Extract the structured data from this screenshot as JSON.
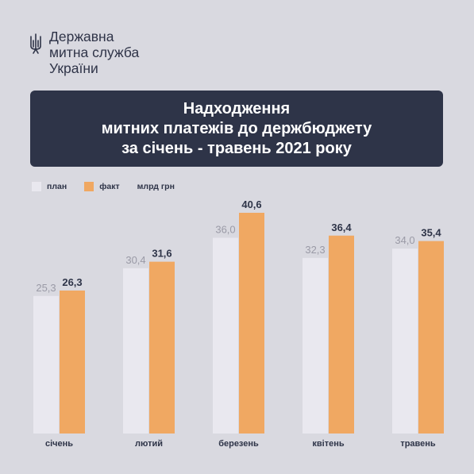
{
  "header": {
    "org_lines": [
      "Державна",
      "митна служба",
      "України"
    ],
    "emblem_icon": "trident-icon"
  },
  "title_lines": [
    "Надходження",
    "митних платежів до держбюджету",
    "за січень - травень 2021 року"
  ],
  "legend": {
    "plan_label": "план",
    "fact_label": "факт",
    "unit_label": "млрд грн"
  },
  "colors": {
    "background": "#d9d9e0",
    "plan": "#e9e8ef",
    "fact": "#f0a862",
    "title_bg": "#2e3448",
    "plan_label": "#9a9aa6",
    "fact_label": "#2e3448"
  },
  "chart_data": {
    "type": "bar",
    "categories": [
      "січень",
      "лютий",
      "березень",
      "квітень",
      "травень"
    ],
    "series": [
      {
        "name": "план",
        "values": [
          25.3,
          30.4,
          36.0,
          32.3,
          34.0
        ],
        "labels": [
          "25,3",
          "30,4",
          "36,0",
          "32,3",
          "34,0"
        ]
      },
      {
        "name": "факт",
        "values": [
          26.3,
          31.6,
          40.6,
          36.4,
          35.4
        ],
        "labels": [
          "26,3",
          "31,6",
          "40,6",
          "36,4",
          "35,4"
        ]
      }
    ],
    "ylabel": "млрд грн",
    "ylim": [
      0,
      40.6
    ],
    "grid": false,
    "legend_position": "top-left"
  }
}
